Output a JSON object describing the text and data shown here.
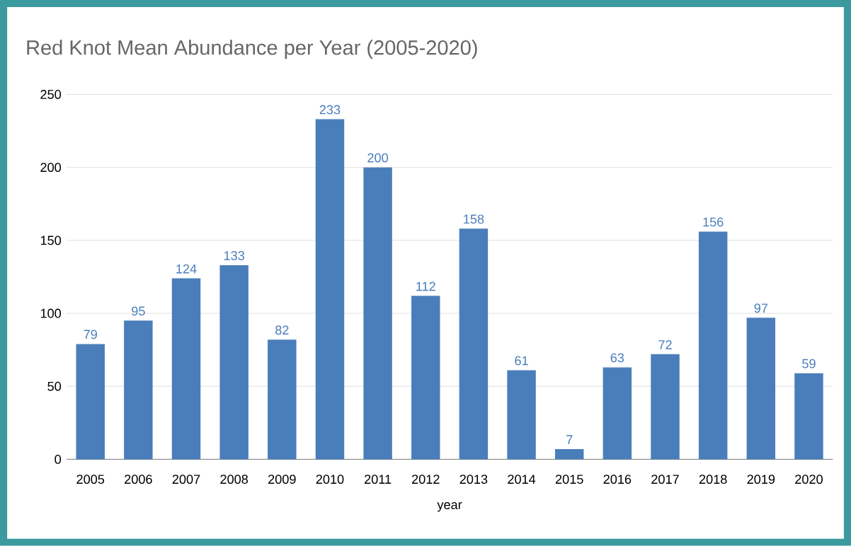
{
  "chart_data": {
    "type": "bar",
    "title": "Red Knot Mean Abundance per Year (2005-2020)",
    "xlabel": "year",
    "categories": [
      "2005",
      "2006",
      "2007",
      "2008",
      "2009",
      "2010",
      "2011",
      "2012",
      "2013",
      "2014",
      "2015",
      "2016",
      "2017",
      "2018",
      "2019",
      "2020"
    ],
    "values": [
      79,
      95,
      124,
      133,
      82,
      233,
      200,
      112,
      158,
      61,
      7,
      63,
      72,
      156,
      97,
      59
    ],
    "color": "#4a7ebb",
    "ylim": [
      0,
      250
    ],
    "yticks": [
      0,
      50,
      100,
      150,
      200,
      250
    ],
    "grid": "y",
    "data_labels": true
  }
}
